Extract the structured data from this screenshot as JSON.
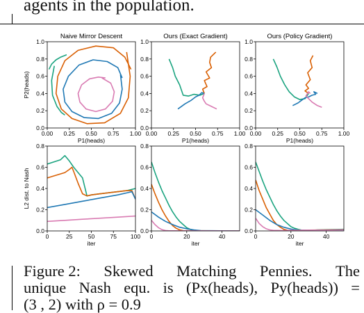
{
  "page": {
    "top_text": "agents in the population.",
    "caption": {
      "figure_label": "Figure 2:",
      "title_words": [
        "Skewed",
        "Matching",
        "Pennies.",
        "The"
      ],
      "line2_words": [
        "unique",
        "Nash",
        "equ.",
        "is",
        "(Px(heads),",
        "Py(heads))",
        "="
      ],
      "line3_partial": "(3 , 2)  with  ρ = 0.9"
    }
  },
  "colors": {
    "green": "#1aa37f",
    "orange": "#d95f02",
    "blue": "#1f78b4",
    "pink": "#d97bb2"
  },
  "chart_data": [
    {
      "type": "line",
      "title": "Naive Mirror Descent",
      "xlabel": "P1(heads)",
      "ylabel": "P2(heads)",
      "xlim": [
        0,
        1
      ],
      "ylim": [
        0,
        1
      ],
      "xticks": [
        "0.00",
        "0.25",
        "0.50",
        "0.75",
        "1.00"
      ],
      "yticks": [
        "0.0",
        "0.2",
        "0.4",
        "0.6",
        "0.8",
        "1.0"
      ],
      "series": [
        {
          "color": "green",
          "x": [
            0.02,
            0.05,
            0.1,
            0.15,
            0.2,
            0.22
          ],
          "y": [
            0.68,
            0.74,
            0.79,
            0.82,
            0.84,
            0.85
          ]
        },
        {
          "color": "green",
          "x": [
            0.08,
            0.05,
            0.06,
            0.11,
            0.16,
            0.2
          ],
          "y": [
            0.72,
            0.55,
            0.38,
            0.25,
            0.18,
            0.15
          ]
        },
        {
          "color": "orange",
          "x": [
            0.9,
            0.94,
            0.92,
            0.83,
            0.65,
            0.45,
            0.28,
            0.16,
            0.1,
            0.12,
            0.2,
            0.35,
            0.55,
            0.75,
            0.88,
            0.95
          ],
          "y": [
            0.88,
            0.6,
            0.35,
            0.17,
            0.06,
            0.05,
            0.11,
            0.22,
            0.4,
            0.6,
            0.78,
            0.9,
            0.95,
            0.93,
            0.82,
            0.68
          ]
        },
        {
          "color": "blue",
          "x": [
            0.83,
            0.85,
            0.82,
            0.73,
            0.58,
            0.42,
            0.28,
            0.2,
            0.18,
            0.24,
            0.36,
            0.52,
            0.68,
            0.8,
            0.85
          ],
          "y": [
            0.62,
            0.45,
            0.29,
            0.17,
            0.11,
            0.12,
            0.19,
            0.3,
            0.45,
            0.6,
            0.73,
            0.79,
            0.77,
            0.7,
            0.58
          ]
        },
        {
          "color": "pink",
          "x": [
            0.62,
            0.72,
            0.76,
            0.74,
            0.66,
            0.55,
            0.44,
            0.37,
            0.35,
            0.39,
            0.48,
            0.58,
            0.66
          ],
          "y": [
            0.58,
            0.52,
            0.42,
            0.31,
            0.22,
            0.19,
            0.22,
            0.3,
            0.4,
            0.5,
            0.57,
            0.59,
            0.58
          ]
        }
      ]
    },
    {
      "type": "line",
      "title": "Ours (Exact Gradient)",
      "xlabel": "P1(heads)",
      "ylabel": "",
      "xlim": [
        0,
        1
      ],
      "ylim": [
        0,
        1
      ],
      "xticks": [
        "0.00",
        "0.25",
        "0.50",
        "0.75",
        "1.00"
      ],
      "yticks": [
        "0.0",
        "0.2",
        "0.4",
        "0.6",
        "0.8",
        "1.0"
      ],
      "series": [
        {
          "color": "green",
          "x": [
            0.2,
            0.24,
            0.27,
            0.32,
            0.36,
            0.42,
            0.48,
            0.55,
            0.6
          ],
          "y": [
            0.8,
            0.7,
            0.6,
            0.5,
            0.38,
            0.37,
            0.39,
            0.38,
            0.4
          ]
        },
        {
          "color": "orange",
          "x": [
            0.73,
            0.67,
            0.66,
            0.68,
            0.62,
            0.66,
            0.6,
            0.63,
            0.58,
            0.6
          ],
          "y": [
            0.88,
            0.82,
            0.76,
            0.7,
            0.65,
            0.58,
            0.55,
            0.48,
            0.45,
            0.4
          ]
        },
        {
          "color": "blue",
          "x": [
            0.3,
            0.38,
            0.45,
            0.5,
            0.54,
            0.57,
            0.6
          ],
          "y": [
            0.22,
            0.28,
            0.32,
            0.36,
            0.38,
            0.41,
            0.4
          ]
        },
        {
          "color": "pink",
          "x": [
            0.74,
            0.68,
            0.62,
            0.6,
            0.58,
            0.6
          ],
          "y": [
            0.22,
            0.25,
            0.28,
            0.31,
            0.35,
            0.4
          ]
        }
      ]
    },
    {
      "type": "line",
      "title": "Ours (Policy Gradient)",
      "xlabel": "P1(heads)",
      "ylabel": "",
      "xlim": [
        0,
        1
      ],
      "ylim": [
        0,
        1
      ],
      "xticks": [
        "0.00",
        "0.25",
        "0.50",
        "0.75",
        "1.00"
      ],
      "yticks": [
        "0.0",
        "0.2",
        "0.4",
        "0.6",
        "0.8",
        "1.0"
      ],
      "series": [
        {
          "color": "green",
          "x": [
            0.2,
            0.24,
            0.28,
            0.33,
            0.38,
            0.44,
            0.5,
            0.56,
            0.6
          ],
          "y": [
            0.8,
            0.71,
            0.6,
            0.5,
            0.42,
            0.36,
            0.33,
            0.34,
            0.4
          ]
        },
        {
          "color": "orange",
          "x": [
            0.65,
            0.62,
            0.64,
            0.59,
            0.62,
            0.57,
            0.6,
            0.56,
            0.6
          ],
          "y": [
            0.84,
            0.78,
            0.7,
            0.64,
            0.56,
            0.5,
            0.46,
            0.43,
            0.4
          ]
        },
        {
          "color": "blue",
          "x": [
            0.42,
            0.48,
            0.52,
            0.56,
            0.6,
            0.64,
            0.68,
            0.66,
            0.7
          ],
          "y": [
            0.26,
            0.29,
            0.32,
            0.35,
            0.36,
            0.38,
            0.39,
            0.42,
            0.4
          ]
        },
        {
          "color": "pink",
          "x": [
            0.75,
            0.7,
            0.64,
            0.6,
            0.57,
            0.6,
            0.62
          ],
          "y": [
            0.24,
            0.26,
            0.3,
            0.34,
            0.37,
            0.42,
            0.4
          ]
        }
      ]
    },
    {
      "type": "line",
      "title": "",
      "xlabel": "iter",
      "ylabel": "L2 dist. to Nash",
      "xlim": [
        0,
        100
      ],
      "ylim": [
        0,
        0.8
      ],
      "xticks": [
        "0",
        "25",
        "50",
        "75",
        "100"
      ],
      "yticks": [
        "0.0",
        "0.2",
        "0.4",
        "0.6",
        "0.8"
      ],
      "series": [
        {
          "color": "green",
          "x": [
            0,
            15,
            20,
            25,
            30,
            35,
            40,
            45,
            50,
            60,
            70,
            80,
            90,
            100
          ],
          "y": [
            0.63,
            0.67,
            0.71,
            0.66,
            0.6,
            0.55,
            0.5,
            0.33,
            0.34,
            0.35,
            0.36,
            0.37,
            0.38,
            0.4
          ]
        },
        {
          "color": "orange",
          "x": [
            0,
            20,
            25,
            28,
            30,
            35,
            40,
            45,
            50,
            60,
            70,
            80,
            90,
            96,
            100
          ],
          "y": [
            0.5,
            0.55,
            0.58,
            0.6,
            0.56,
            0.45,
            0.35,
            0.33,
            0.34,
            0.35,
            0.36,
            0.37,
            0.38,
            0.38,
            0.3
          ]
        },
        {
          "color": "blue",
          "x": [
            0,
            20,
            40,
            60,
            80,
            96,
            100
          ],
          "y": [
            0.22,
            0.25,
            0.28,
            0.31,
            0.34,
            0.37,
            0.3
          ]
        },
        {
          "color": "pink",
          "x": [
            0,
            20,
            40,
            60,
            80,
            100
          ],
          "y": [
            0.09,
            0.1,
            0.11,
            0.12,
            0.13,
            0.14
          ]
        }
      ]
    },
    {
      "type": "line",
      "title": "",
      "xlabel": "iter",
      "ylabel": "",
      "xlim": [
        0,
        50
      ],
      "ylim": [
        0,
        0.8
      ],
      "xticks": [
        "0",
        "20",
        "40"
      ],
      "yticks": [
        "0.0",
        "0.2",
        "0.4",
        "0.6",
        "0.8"
      ],
      "series": [
        {
          "color": "green",
          "x": [
            0,
            2,
            4,
            6,
            8,
            10,
            12,
            14,
            16,
            18,
            20,
            22,
            24,
            26,
            50
          ],
          "y": [
            0.65,
            0.55,
            0.46,
            0.38,
            0.31,
            0.24,
            0.18,
            0.13,
            0.09,
            0.06,
            0.03,
            0.015,
            0.005,
            0.002,
            0.0
          ]
        },
        {
          "color": "orange",
          "x": [
            0,
            2,
            4,
            6,
            8,
            10,
            12,
            14,
            16,
            18,
            50
          ],
          "y": [
            0.44,
            0.35,
            0.27,
            0.2,
            0.14,
            0.09,
            0.05,
            0.025,
            0.01,
            0.003,
            0.0
          ]
        },
        {
          "color": "blue",
          "x": [
            0,
            4,
            8,
            12,
            16,
            20,
            24,
            28,
            50
          ],
          "y": [
            0.18,
            0.13,
            0.09,
            0.06,
            0.035,
            0.02,
            0.01,
            0.003,
            0.0
          ]
        },
        {
          "color": "pink",
          "x": [
            0,
            2,
            4,
            6,
            8,
            10,
            50
          ],
          "y": [
            0.1,
            0.06,
            0.03,
            0.012,
            0.004,
            0.001,
            0.0
          ]
        }
      ]
    },
    {
      "type": "line",
      "title": "",
      "xlabel": "iter",
      "ylabel": "",
      "xlim": [
        0,
        50
      ],
      "ylim": [
        0,
        0.8
      ],
      "xticks": [
        "0",
        "20",
        "40"
      ],
      "yticks": [
        "0.0",
        "0.2",
        "0.4",
        "0.6",
        "0.8"
      ],
      "series": [
        {
          "color": "green",
          "x": [
            0,
            2,
            4,
            6,
            8,
            10,
            12,
            14,
            16,
            18,
            20,
            22,
            24,
            26,
            30,
            35,
            40,
            50
          ],
          "y": [
            0.65,
            0.56,
            0.47,
            0.39,
            0.32,
            0.25,
            0.19,
            0.14,
            0.1,
            0.07,
            0.04,
            0.025,
            0.015,
            0.008,
            0.004,
            0.01,
            0.012,
            0.015
          ]
        },
        {
          "color": "orange",
          "x": [
            0,
            2,
            4,
            6,
            8,
            10,
            12,
            14,
            16,
            18,
            20,
            25,
            30,
            40,
            50
          ],
          "y": [
            0.48,
            0.38,
            0.3,
            0.22,
            0.16,
            0.1,
            0.06,
            0.035,
            0.015,
            0.007,
            0.003,
            0.005,
            0.008,
            0.01,
            0.012
          ]
        },
        {
          "color": "blue",
          "x": [
            0,
            4,
            8,
            12,
            16,
            20,
            24,
            30,
            40,
            50
          ],
          "y": [
            0.2,
            0.15,
            0.1,
            0.06,
            0.035,
            0.018,
            0.008,
            0.006,
            0.008,
            0.01
          ]
        },
        {
          "color": "pink",
          "x": [
            0,
            2,
            4,
            6,
            8,
            10,
            15,
            20,
            30,
            40,
            50
          ],
          "y": [
            0.12,
            0.07,
            0.04,
            0.02,
            0.01,
            0.005,
            0.004,
            0.006,
            0.007,
            0.008,
            0.01
          ]
        }
      ]
    }
  ]
}
